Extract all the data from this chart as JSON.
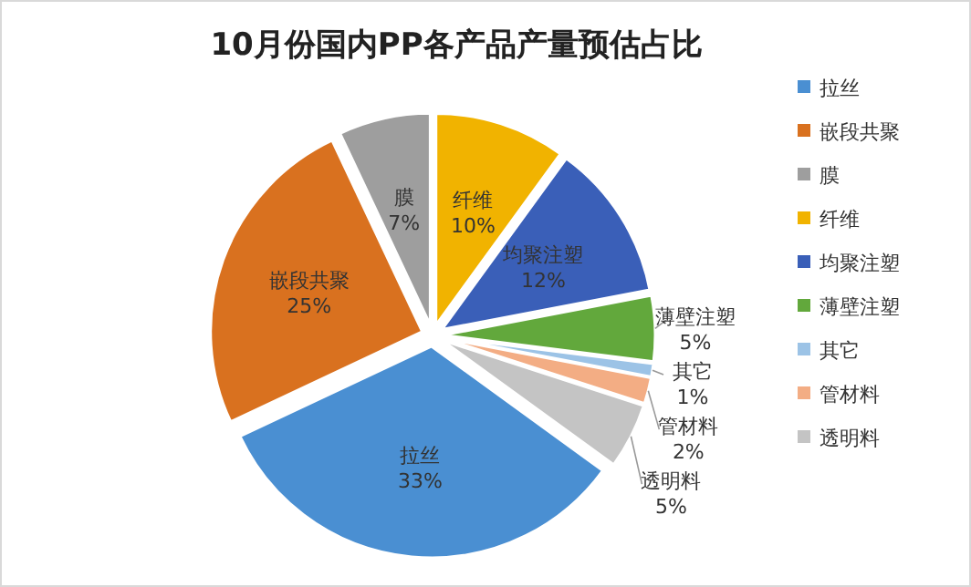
{
  "chart_data": {
    "type": "pie",
    "title": "10月份国内PP各产品产量预估占比",
    "categories": [
      "拉丝",
      "嵌段共聚",
      "膜",
      "纤维",
      "均聚注塑",
      "薄壁注塑",
      "其它",
      "管材料",
      "透明料"
    ],
    "values": [
      33,
      25,
      7,
      10,
      12,
      5,
      1,
      2,
      5
    ],
    "value_labels": [
      "33%",
      "25%",
      "7%",
      "10%",
      "12%",
      "5%",
      "1%",
      "2%",
      "5%"
    ],
    "colors": [
      "#4a8fd2",
      "#d9711f",
      "#9e9e9e",
      "#f1b300",
      "#3a5fb8",
      "#62a83c",
      "#9cc3e6",
      "#f3ad84",
      "#c4c4c4"
    ],
    "legend": "right"
  }
}
